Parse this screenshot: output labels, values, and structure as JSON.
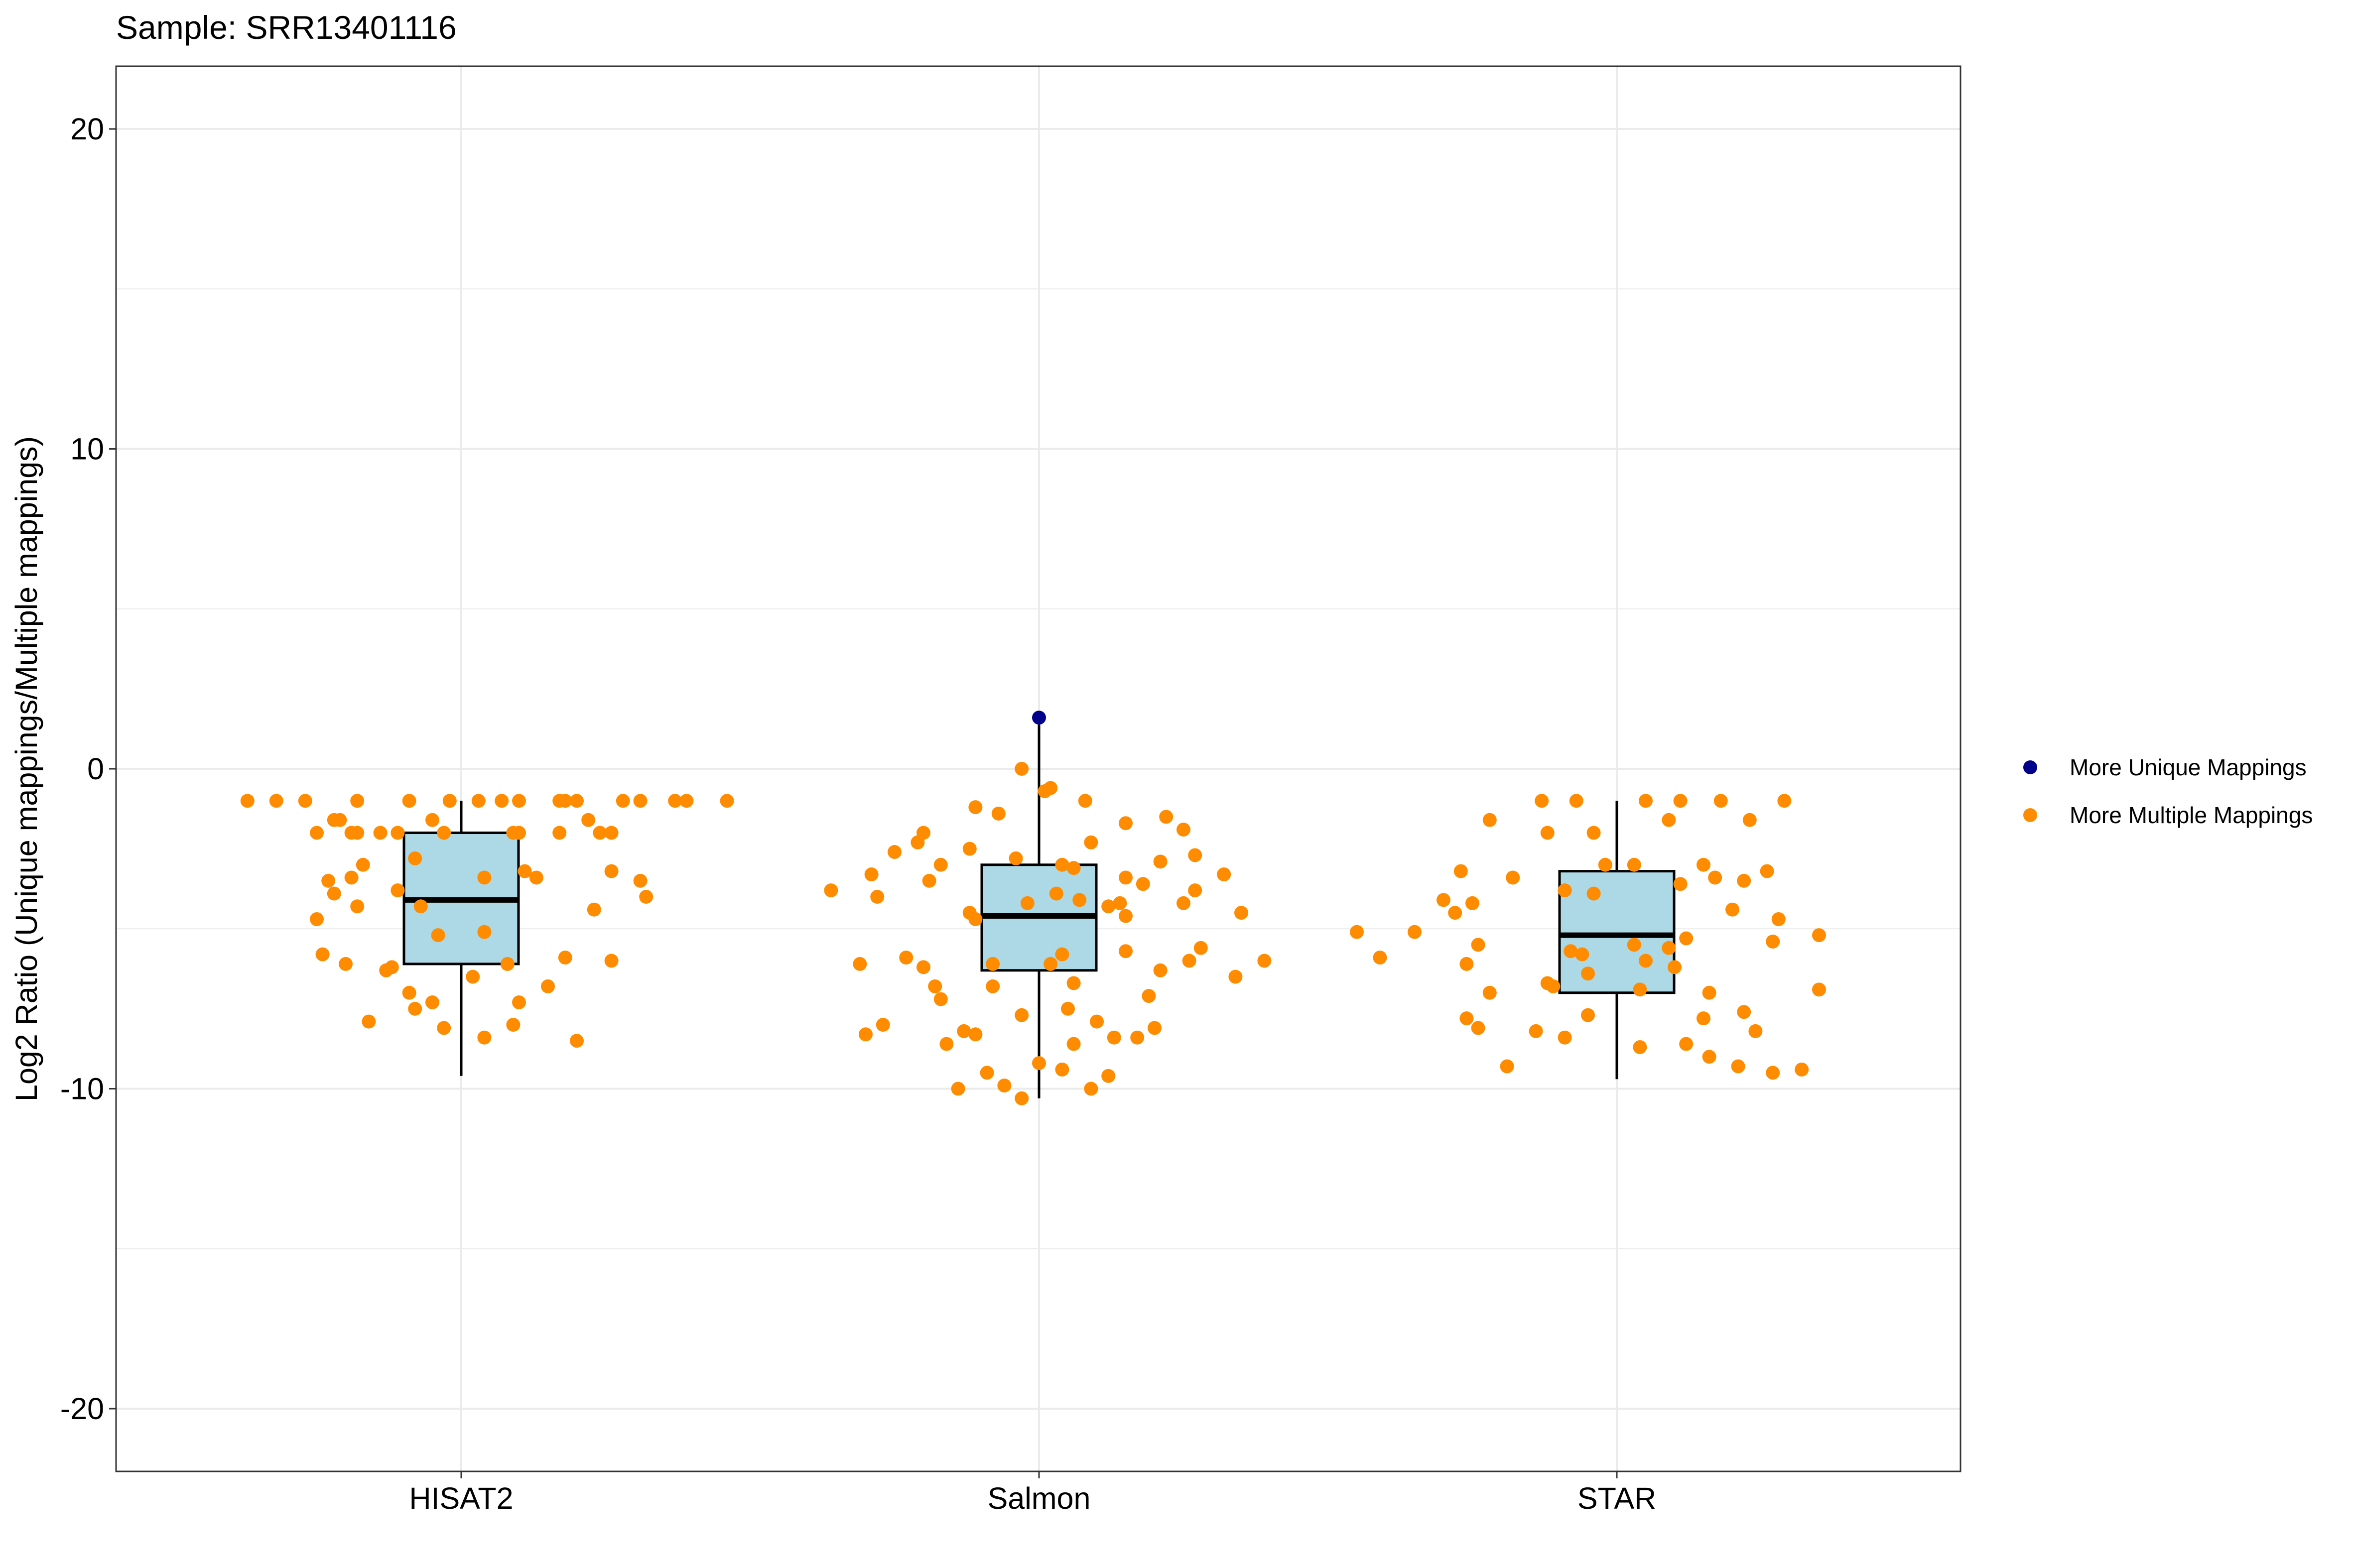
{
  "chart_data": {
    "type": "box",
    "title": "Sample: SRR13401116",
    "xlabel": "",
    "ylabel": "Log2 Ratio (Unique mappings/Multiple mappings)",
    "ylim": [
      -22,
      22
    ],
    "yticks": [
      20,
      10,
      0,
      -10,
      -20
    ],
    "ytick_labels": [
      "20",
      "10",
      "0",
      "-10",
      "-20"
    ],
    "categories": [
      "HISAT2",
      "Salmon",
      "STAR"
    ],
    "grid": true,
    "legend_position": "right",
    "legend": [
      {
        "label": "More Unique Mappings",
        "color": "#00008B"
      },
      {
        "label": "More Multiple Mappings",
        "color": "#FF8C00"
      }
    ],
    "box_fill": "#ADD8E6",
    "boxes": [
      {
        "category": "HISAT2",
        "whisker_high": -1.0,
        "q3": -2.0,
        "median": -4.1,
        "q1": -6.1,
        "whisker_low": -9.6
      },
      {
        "category": "Salmon",
        "whisker_high": 1.6,
        "q3": -3.0,
        "median": -4.6,
        "q1": -6.3,
        "whisker_low": -10.3
      },
      {
        "category": "STAR",
        "whisker_high": -1.0,
        "q3": -3.2,
        "median": -5.2,
        "q1": -7.0,
        "whisker_low": -9.7
      }
    ],
    "points": [
      {
        "category": "HISAT2",
        "group": "More Multiple Mappings",
        "x_offset": [
          -0.37,
          -0.32,
          -0.27,
          -0.18,
          -0.09,
          -0.02,
          0.03,
          0.07,
          0.1,
          0.17,
          0.2,
          0.28,
          0.31,
          0.39,
          0.46,
          0.18,
          0.37,
          -0.22,
          -0.19,
          -0.11,
          -0.14,
          -0.03,
          0.09,
          0.1,
          0.17,
          0.24,
          -0.18,
          -0.05,
          0.22,
          -0.21,
          -0.25,
          0.26,
          -0.17,
          -0.08,
          0.11,
          0.26,
          -0.23,
          0.31,
          -0.19,
          -0.11,
          0.04,
          0.13,
          -0.22,
          -0.25,
          0.32,
          -0.18,
          -0.07,
          0.23,
          -0.24,
          -0.2,
          0.18,
          -0.04,
          0.02,
          0.26,
          -0.13,
          0.15,
          0.04,
          0.08,
          -0.09,
          -0.12,
          -0.05,
          0.1,
          -0.08,
          0.09,
          -0.16,
          -0.03,
          0.04,
          0.2
        ],
        "values": [
          -1.0,
          -1.0,
          -1.0,
          -1.0,
          -1.0,
          -1.0,
          -1.0,
          -1.0,
          -1.0,
          -1.0,
          -1.0,
          -1.0,
          -1.0,
          -1.0,
          -1.0,
          -1.0,
          -1.0,
          -1.6,
          -2.0,
          -2.0,
          -2.0,
          -2.0,
          -2.0,
          -2.0,
          -2.0,
          -2.0,
          -2.0,
          -1.6,
          -1.6,
          -1.6,
          -2.0,
          -2.0,
          -3.0,
          -2.8,
          -3.2,
          -3.2,
          -3.5,
          -3.5,
          -3.4,
          -3.8,
          -3.4,
          -3.4,
          -3.9,
          -4.7,
          -4.0,
          -4.3,
          -4.3,
          -4.4,
          -5.8,
          -6.1,
          -5.9,
          -5.2,
          -6.5,
          -6.0,
          -6.3,
          -6.8,
          -5.1,
          -6.1,
          -7.0,
          -6.2,
          -7.3,
          -7.3,
          -7.5,
          -8.0,
          -7.9,
          -8.1,
          -8.4,
          -8.5
        ]
      },
      {
        "category": "Salmon",
        "group": "More Multiple Mappings",
        "x_offset": [
          -0.03,
          0.02,
          -0.11,
          0.08,
          0.01,
          -0.2,
          -0.07,
          0.22,
          -0.21,
          -0.12,
          0.15,
          0.25,
          0.09,
          -0.25,
          -0.04,
          -0.17,
          0.04,
          0.21,
          0.06,
          0.15,
          -0.19,
          0.27,
          0.18,
          -0.29,
          -0.36,
          -0.28,
          0.32,
          0.14,
          -0.02,
          0.03,
          -0.12,
          0.07,
          0.12,
          -0.11,
          0.27,
          0.15,
          0.35,
          0.25,
          0.39,
          -0.23,
          -0.31,
          -0.2,
          -0.08,
          0.04,
          0.15,
          0.21,
          0.34,
          -0.18,
          0.02,
          0.06,
          -0.08,
          0.26,
          0.28,
          -0.17,
          0.19,
          0.05,
          -0.27,
          -0.13,
          -0.3,
          0.2,
          0.1,
          0.13,
          -0.11,
          -0.03,
          0.06,
          0.17,
          -0.16,
          -0.09,
          0.0,
          0.04,
          0.12,
          -0.06,
          -0.14,
          -0.03,
          0.09
        ],
        "values": [
          0.0,
          -0.6,
          -1.2,
          -1.0,
          -0.7,
          -2.0,
          -1.4,
          -1.5,
          -2.3,
          -2.5,
          -1.7,
          -1.9,
          -2.3,
          -2.6,
          -2.8,
          -3.0,
          -3.0,
          -2.9,
          -3.1,
          -3.4,
          -3.5,
          -2.7,
          -3.6,
          -3.3,
          -3.8,
          -4.0,
          -3.3,
          -4.2,
          -4.2,
          -3.9,
          -4.5,
          -4.1,
          -4.3,
          -4.7,
          -3.8,
          -4.6,
          -4.5,
          -4.2,
          -6.0,
          -5.9,
          -6.1,
          -6.2,
          -6.1,
          -5.8,
          -5.7,
          -6.3,
          -6.5,
          -6.8,
          -6.1,
          -6.7,
          -6.8,
          -6.0,
          -5.6,
          -7.2,
          -7.1,
          -7.5,
          -8.0,
          -8.2,
          -8.3,
          -8.1,
          -7.9,
          -8.4,
          -8.3,
          -7.7,
          -8.6,
          -8.4,
          -8.6,
          -9.5,
          -9.2,
          -9.4,
          -9.6,
          -9.9,
          -10.0,
          -10.3,
          -10.0
        ]
      },
      {
        "category": "STAR",
        "group": "More Multiple Mappings",
        "x_offset": [
          -0.13,
          -0.07,
          0.05,
          0.11,
          0.18,
          0.29,
          -0.22,
          -0.12,
          -0.04,
          0.09,
          0.23,
          -0.27,
          0.03,
          0.17,
          -0.18,
          0.22,
          0.26,
          -0.09,
          0.11,
          -0.25,
          -0.3,
          -0.28,
          0.2,
          0.28,
          -0.24,
          -0.06,
          0.09,
          -0.35,
          0.12,
          0.27,
          0.35,
          -0.45,
          -0.41,
          -0.26,
          -0.22,
          -0.05,
          0.05,
          -0.11,
          0.16,
          0.35,
          -0.26,
          0.22,
          0.24,
          0.15,
          -0.14,
          -0.24,
          -0.09,
          0.12,
          0.32,
          -0.19,
          0.27,
          0.21,
          0.16,
          0.04,
          -0.05,
          0.04,
          -0.12,
          0.1,
          -0.08,
          0.03,
          -0.04,
          0.15,
          -0.02
        ],
        "values": [
          -1.0,
          -1.0,
          -1.0,
          -1.0,
          -1.0,
          -1.0,
          -1.6,
          -2.0,
          -2.0,
          -1.6,
          -1.6,
          -3.2,
          -3.0,
          -3.4,
          -3.4,
          -3.5,
          -3.2,
          -3.8,
          -3.6,
          -4.2,
          -4.1,
          -4.5,
          -4.4,
          -4.7,
          -5.5,
          -5.8,
          -5.6,
          -5.1,
          -5.3,
          -5.4,
          -5.2,
          -5.1,
          -5.9,
          -6.1,
          -7.0,
          -6.4,
          -6.0,
          -6.8,
          -7.0,
          -6.9,
          -7.8,
          -7.6,
          -8.2,
          -7.8,
          -8.2,
          -8.1,
          -8.4,
          -8.6,
          -9.4,
          -9.3,
          -9.5,
          -9.3,
          -9.0,
          -8.7,
          -7.7,
          -6.9,
          -6.7,
          -6.2,
          -5.7,
          -5.5,
          -3.9,
          -3.0,
          -3.0
        ]
      },
      {
        "category": "Salmon",
        "group": "More Unique Mappings",
        "x_offset": [
          0.0
        ],
        "values": [
          1.6
        ]
      }
    ]
  }
}
